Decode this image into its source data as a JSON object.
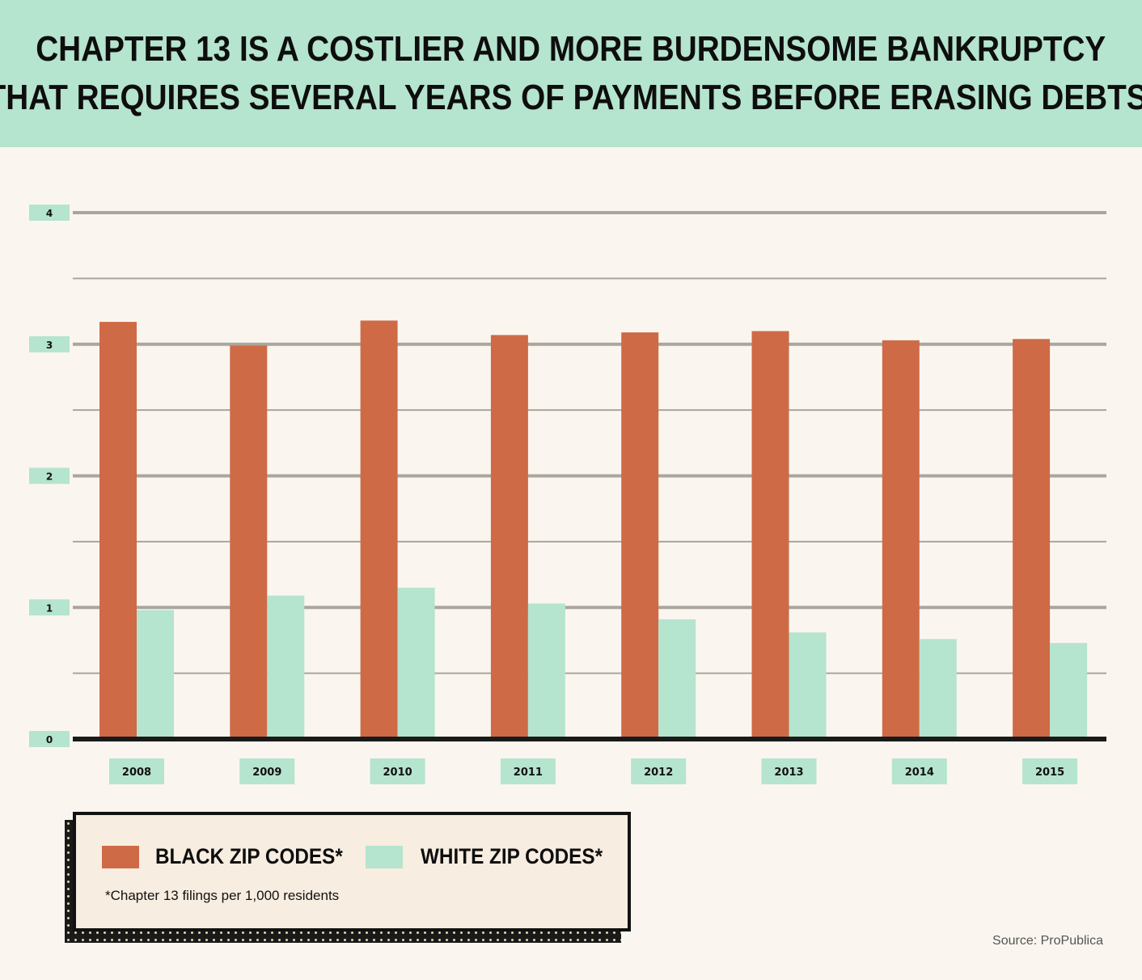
{
  "header": {
    "title_line1": "CHAPTER 13 IS A COSTLIER AND MORE BURDENSOME BANKRUPTCY",
    "title_line2": "THAT REQUIRES SEVERAL YEARS OF PAYMENTS BEFORE ERASING DEBTS."
  },
  "legend": {
    "series1_label": "BLACK ZIP CODES*",
    "series2_label": "WHITE ZIP CODES*",
    "note": "*Chapter 13 filings per 1,000 residents"
  },
  "source": "Source: ProPublica",
  "colors": {
    "header_bg": "#b5e4cf",
    "black_zip": "#cf6a46",
    "white_zip": "#b5e4cf",
    "grid": "#aaa69d",
    "axis": "#1a1a1a",
    "background": "#faf6ef"
  },
  "chart_data": {
    "type": "bar",
    "categories": [
      "2008",
      "2009",
      "2010",
      "2011",
      "2012",
      "2013",
      "2014",
      "2015"
    ],
    "series": [
      {
        "name": "BLACK ZIP CODES*",
        "values": [
          3.17,
          2.99,
          3.18,
          3.07,
          3.09,
          3.1,
          3.03,
          3.04
        ]
      },
      {
        "name": "WHITE ZIP CODES*",
        "values": [
          0.98,
          1.09,
          1.15,
          1.03,
          0.91,
          0.81,
          0.76,
          0.73
        ]
      }
    ],
    "yticks": [
      "0",
      "1",
      "2",
      "3",
      "4"
    ],
    "ylim": [
      0,
      4
    ],
    "minor_grid_step": 0.5,
    "legend_position": "bottom-left",
    "grid": true
  }
}
